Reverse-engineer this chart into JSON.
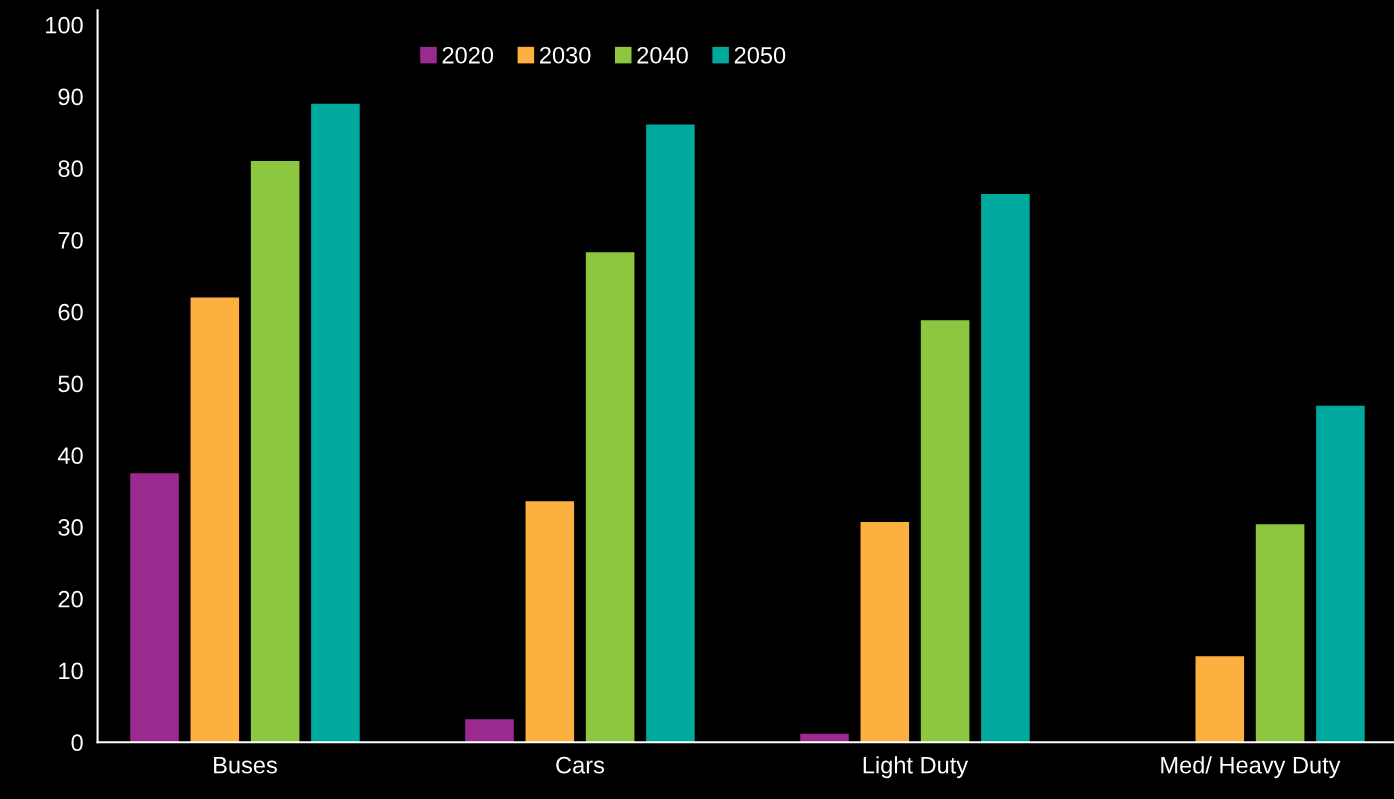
{
  "chart_data": {
    "type": "bar",
    "categories": [
      "Buses",
      "Cars",
      "Light Duty",
      "Med/ Heavy Duty"
    ],
    "series": [
      {
        "name": "2020",
        "color": "#9b2a8e",
        "values": [
          37.5,
          3.2,
          1.2,
          0
        ]
      },
      {
        "name": "2030",
        "color": "#fbb040",
        "values": [
          62,
          33.6,
          30.7,
          12
        ]
      },
      {
        "name": "2040",
        "color": "#8dc63f",
        "values": [
          81,
          68.3,
          58.8,
          30.4
        ]
      },
      {
        "name": "2050",
        "color": "#00a99d",
        "values": [
          89,
          86.1,
          76.4,
          46.9
        ]
      }
    ],
    "ylim": [
      0,
      102
    ],
    "yticks": [
      0,
      10,
      20,
      30,
      40,
      50,
      60,
      70,
      80,
      90,
      100
    ],
    "grid": false,
    "legend": "top"
  }
}
